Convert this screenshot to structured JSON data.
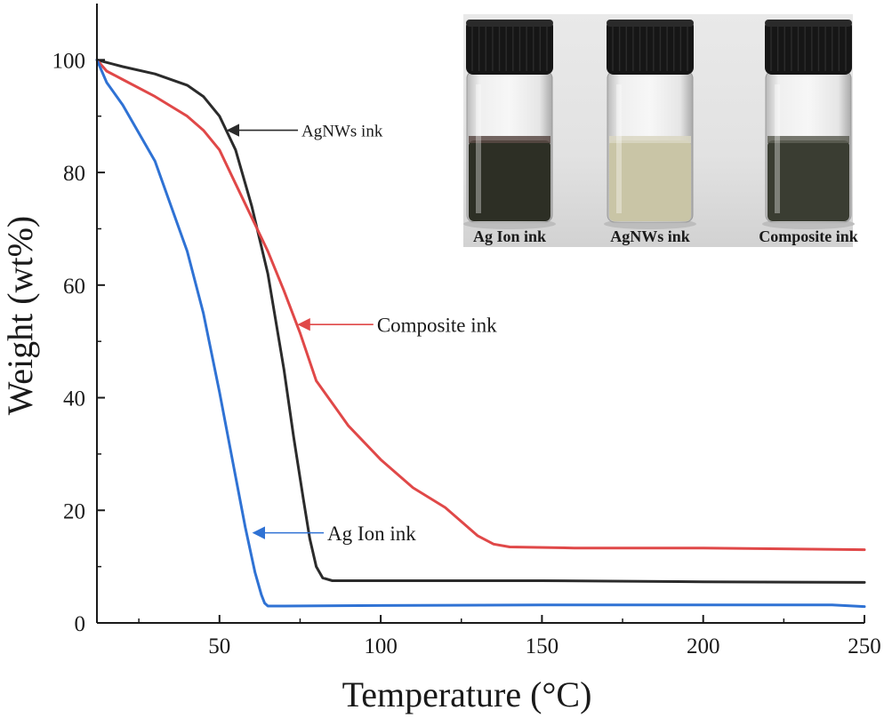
{
  "chart_data": {
    "type": "line",
    "xlabel": "Temperature (°C)",
    "ylabel": "Weight (wt%)",
    "xlim": [
      12,
      250
    ],
    "ylim": [
      0,
      110
    ],
    "x_ticks": [
      50,
      100,
      150,
      200,
      250
    ],
    "y_ticks": [
      0,
      20,
      40,
      60,
      80,
      100
    ],
    "grid": false,
    "series": [
      {
        "name": "AgNWs ink",
        "color": "#2b2b2b",
        "x": [
          12,
          20,
          30,
          40,
          45,
          50,
          55,
          60,
          65,
          70,
          73,
          76,
          78,
          80,
          82,
          85,
          100,
          150,
          200,
          250
        ],
        "y": [
          100,
          98.8,
          97.5,
          95.5,
          93.5,
          90,
          84,
          74,
          62,
          45,
          33,
          22,
          15,
          10,
          8,
          7.5,
          7.5,
          7.5,
          7.3,
          7.2
        ]
      },
      {
        "name": "Composite ink",
        "color": "#e04848",
        "x": [
          12,
          15,
          20,
          30,
          40,
          45,
          50,
          55,
          60,
          65,
          70,
          75,
          80,
          90,
          100,
          110,
          120,
          125,
          130,
          135,
          140,
          160,
          200,
          250
        ],
        "y": [
          100,
          98,
          96.5,
          93.5,
          90,
          87.5,
          84,
          78,
          72,
          66,
          59,
          51.5,
          43,
          35,
          29,
          24,
          20.5,
          18,
          15.5,
          14,
          13.5,
          13.3,
          13.3,
          13
        ]
      },
      {
        "name": "Ag Ion ink",
        "color": "#2f72d4",
        "x": [
          12,
          15,
          20,
          30,
          40,
          45,
          50,
          55,
          58,
          61,
          63,
          64,
          65,
          66,
          70,
          100,
          150,
          200,
          240,
          250
        ],
        "y": [
          100,
          96,
          92,
          82,
          66,
          55,
          41,
          26,
          17,
          9,
          5,
          3.5,
          3,
          3,
          3,
          3.1,
          3.2,
          3.2,
          3.2,
          2.9
        ]
      }
    ],
    "annotations": [
      {
        "text": "AgNWs ink",
        "series": 0,
        "arrow_x": 52,
        "arrow_y": 87.5
      },
      {
        "text": "Composite ink",
        "series": 1,
        "arrow_x": 74,
        "arrow_y": 53
      },
      {
        "text": "Ag Ion ink",
        "series": 2,
        "arrow_x": 60,
        "arrow_y": 16
      }
    ]
  },
  "inset": {
    "vials": [
      {
        "label": "Ag Ion ink",
        "liquid_color": "#2d2f25",
        "foam_color": "#5a4a45"
      },
      {
        "label": "AgNWs ink",
        "liquid_color": "#c9c5a6",
        "foam_color": "#d9d6c2"
      },
      {
        "label": "Composite ink",
        "liquid_color": "#3a3d32",
        "foam_color": "#5e5f55"
      }
    ]
  }
}
